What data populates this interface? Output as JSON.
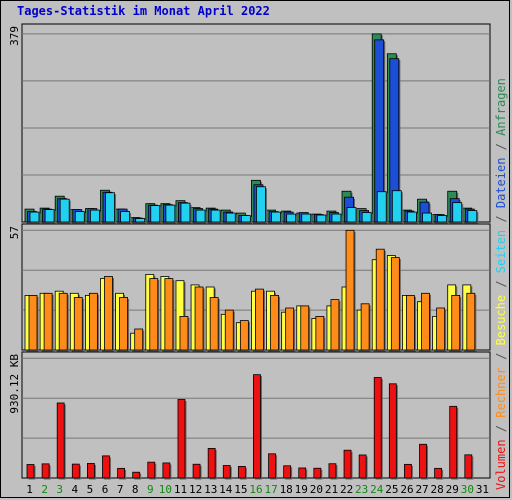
{
  "title": "Tages-Statistik im Monat April 2022",
  "colors": {
    "anfragen": "#2e8b57",
    "dateien": "#1c4fd6",
    "seiten": "#22d0f0",
    "besuche": "#ffff44",
    "rechner": "#ff8c1a",
    "volumen": "#ee1111",
    "separator": "#555555",
    "weekday": "#000000",
    "weekend": "#118811"
  },
  "legend": {
    "items": [
      {
        "label": "Anfragen",
        "color": "#2e8b57"
      },
      {
        "label": "Dateien",
        "color": "#1c4fd6"
      },
      {
        "label": "Seiten",
        "color": "#22d0f0"
      },
      {
        "label": "Besuche",
        "color": "#ffff44"
      },
      {
        "label": "Rechner",
        "color": "#ff8c1a"
      },
      {
        "label": "Volumen",
        "color": "#ee1111"
      }
    ],
    "separator": "/"
  },
  "chart_data": [
    {
      "type": "bar",
      "panel": "top",
      "ymax_label": "379",
      "ylim": [
        0,
        379
      ],
      "categories": [
        "1",
        "2",
        "3",
        "4",
        "5",
        "6",
        "7",
        "8",
        "9",
        "10",
        "11",
        "12",
        "13",
        "14",
        "15",
        "16",
        "17",
        "18",
        "19",
        "20",
        "21",
        "22",
        "23",
        "24",
        "25",
        "26",
        "27",
        "28",
        "29",
        "30",
        "31"
      ],
      "series": [
        {
          "name": "Anfragen",
          "values": [
            26,
            28,
            52,
            25,
            27,
            64,
            26,
            9,
            37,
            37,
            43,
            29,
            28,
            24,
            18,
            84,
            24,
            22,
            18,
            16,
            22,
            62,
            27,
            379,
            339,
            24,
            46,
            15,
            62,
            28,
            0
          ]
        },
        {
          "name": "Dateien",
          "values": [
            21,
            26,
            47,
            25,
            27,
            60,
            26,
            8,
            34,
            35,
            39,
            27,
            26,
            20,
            13,
            75,
            21,
            20,
            19,
            15,
            19,
            50,
            23,
            367,
            329,
            22,
            40,
            15,
            47,
            26,
            0
          ]
        },
        {
          "name": "Seiten",
          "values": [
            20,
            25,
            46,
            21,
            24,
            59,
            21,
            7,
            33,
            34,
            38,
            24,
            24,
            18,
            13,
            71,
            20,
            16,
            16,
            14,
            16,
            29,
            19,
            61,
            63,
            20,
            18,
            13,
            39,
            23,
            0
          ]
        }
      ]
    },
    {
      "type": "bar",
      "panel": "middle",
      "ymax_label": "57",
      "ylim": [
        0,
        57
      ],
      "series": [
        {
          "name": "Besuche",
          "values": [
            26,
            27,
            28,
            27,
            26,
            34,
            27,
            8,
            36,
            35,
            33,
            31,
            30,
            17,
            13,
            28,
            28,
            18,
            21,
            15,
            21,
            30,
            19,
            43,
            45,
            26,
            23,
            16,
            31,
            31,
            0
          ]
        },
        {
          "name": "Rechner",
          "values": [
            26,
            27,
            27,
            25,
            27,
            35,
            25,
            10,
            34,
            34,
            16,
            30,
            25,
            19,
            14,
            29,
            26,
            20,
            21,
            16,
            24,
            57,
            22,
            48,
            44,
            26,
            27,
            20,
            26,
            27,
            0
          ]
        }
      ]
    },
    {
      "type": "bar",
      "panel": "bottom",
      "ymax_label": "930.12 KB",
      "ylim": [
        0,
        930.12
      ],
      "series": [
        {
          "name": "Volumen",
          "values": [
            105,
            110,
            583,
            108,
            113,
            172,
            75,
            45,
            123,
            117,
            610,
            107,
            230,
            97,
            90,
            803,
            188,
            95,
            78,
            76,
            111,
            216,
            179,
            781,
            732,
            106,
            262,
            75,
            557,
            180,
            0
          ]
        }
      ]
    }
  ],
  "xaxis": {
    "labels": [
      "1",
      "2",
      "3",
      "4",
      "5",
      "6",
      "7",
      "8",
      "9",
      "10",
      "11",
      "12",
      "13",
      "14",
      "15",
      "16",
      "17",
      "18",
      "19",
      "20",
      "21",
      "22",
      "23",
      "24",
      "25",
      "26",
      "27",
      "28",
      "29",
      "30",
      "31"
    ],
    "weekend_days": [
      2,
      3,
      9,
      10,
      16,
      17,
      23,
      24,
      30
    ]
  }
}
